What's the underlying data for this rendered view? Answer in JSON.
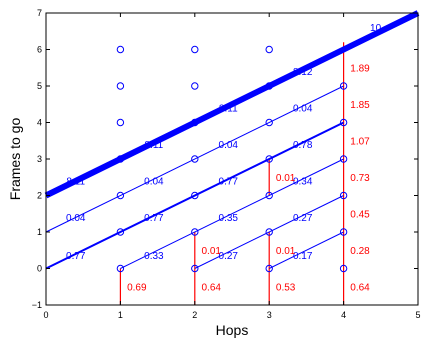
{
  "colors": {
    "blue": "#0000ff",
    "red": "#ff0000",
    "axis": "#000000"
  },
  "chart_data": {
    "type": "line",
    "title": "",
    "xlabel": "Hops",
    "ylabel": "Frames to go",
    "xlim": [
      0,
      5
    ],
    "ylim": [
      -1,
      7
    ],
    "xticks": [
      "0",
      "1",
      "2",
      "3",
      "4",
      "5"
    ],
    "yticks": [
      "−1",
      "0",
      "1",
      "2",
      "3",
      "4",
      "5",
      "6",
      "7"
    ],
    "grid": false,
    "lines": [
      {
        "x": [
          0,
          5
        ],
        "y": [
          2,
          7
        ],
        "weight": "thick"
      },
      {
        "x": [
          0,
          4
        ],
        "y": [
          0,
          4
        ],
        "weight": "medium"
      },
      {
        "x": [
          0,
          4
        ],
        "y": [
          1,
          5
        ],
        "weight": "thin"
      },
      {
        "x": [
          1,
          4
        ],
        "y": [
          0,
          3
        ],
        "weight": "thin"
      },
      {
        "x": [
          2,
          4
        ],
        "y": [
          0,
          2
        ],
        "weight": "thin"
      },
      {
        "x": [
          3,
          4
        ],
        "y": [
          0,
          1
        ],
        "weight": "thin"
      }
    ],
    "points": [
      {
        "x": 1,
        "y": 0
      },
      {
        "x": 1,
        "y": 1
      },
      {
        "x": 1,
        "y": 2
      },
      {
        "x": 1,
        "y": 3
      },
      {
        "x": 1,
        "y": 4
      },
      {
        "x": 1,
        "y": 5
      },
      {
        "x": 1,
        "y": 6
      },
      {
        "x": 2,
        "y": 0
      },
      {
        "x": 2,
        "y": 1
      },
      {
        "x": 2,
        "y": 2
      },
      {
        "x": 2,
        "y": 3
      },
      {
        "x": 2,
        "y": 4
      },
      {
        "x": 2,
        "y": 5
      },
      {
        "x": 2,
        "y": 6
      },
      {
        "x": 3,
        "y": 0
      },
      {
        "x": 3,
        "y": 1
      },
      {
        "x": 3,
        "y": 2
      },
      {
        "x": 3,
        "y": 3
      },
      {
        "x": 3,
        "y": 4
      },
      {
        "x": 3,
        "y": 5
      },
      {
        "x": 3,
        "y": 6
      },
      {
        "x": 4,
        "y": 0
      },
      {
        "x": 4,
        "y": 1
      },
      {
        "x": 4,
        "y": 2
      },
      {
        "x": 4,
        "y": 3
      },
      {
        "x": 4,
        "y": 4
      },
      {
        "x": 4,
        "y": 5
      }
    ],
    "red_stems": [
      {
        "x": 1,
        "y1": -1,
        "y2": 0
      },
      {
        "x": 2,
        "y1": -1,
        "y2": 1
      },
      {
        "x": 3,
        "y1": -1,
        "y2": 1
      },
      {
        "x": 3,
        "y1": 2,
        "y2": 3
      },
      {
        "x": 4,
        "y1": -1,
        "y2": 6.2
      }
    ],
    "blue_labels": [
      {
        "text": "0.77",
        "x": 0.4,
        "y": 0.35
      },
      {
        "text": "0.04",
        "x": 0.4,
        "y": 1.4
      },
      {
        "text": "8.11",
        "x": 0.4,
        "y": 2.4
      },
      {
        "text": "0.33",
        "x": 1.45,
        "y": 0.35
      },
      {
        "text": "0.77",
        "x": 1.45,
        "y": 1.4
      },
      {
        "text": "0.04",
        "x": 1.45,
        "y": 2.4
      },
      {
        "text": "8.11",
        "x": 1.45,
        "y": 3.4
      },
      {
        "text": "0.27",
        "x": 2.45,
        "y": 0.35
      },
      {
        "text": "0.35",
        "x": 2.45,
        "y": 1.4
      },
      {
        "text": "0.77",
        "x": 2.45,
        "y": 2.4
      },
      {
        "text": "0.04",
        "x": 2.45,
        "y": 3.4
      },
      {
        "text": "8.11",
        "x": 2.45,
        "y": 4.4
      },
      {
        "text": "0.17",
        "x": 3.45,
        "y": 0.35
      },
      {
        "text": "0.27",
        "x": 3.45,
        "y": 1.4
      },
      {
        "text": "0.34",
        "x": 3.45,
        "y": 2.4
      },
      {
        "text": "0.78",
        "x": 3.45,
        "y": 3.4
      },
      {
        "text": "0.04",
        "x": 3.45,
        "y": 4.4
      },
      {
        "text": "8.12",
        "x": 3.45,
        "y": 5.4
      },
      {
        "text": "10",
        "x": 4.43,
        "y": 6.6
      }
    ],
    "red_labels": [
      {
        "text": "0.69",
        "x": 1.09,
        "y": -0.5
      },
      {
        "text": "0.01",
        "x": 2.09,
        "y": 0.5
      },
      {
        "text": "0.64",
        "x": 2.09,
        "y": -0.5
      },
      {
        "text": "0.01",
        "x": 3.09,
        "y": 2.5
      },
      {
        "text": "0.01",
        "x": 3.09,
        "y": 0.5
      },
      {
        "text": "0.53",
        "x": 3.09,
        "y": -0.5
      },
      {
        "text": "1.89",
        "x": 4.09,
        "y": 5.5
      },
      {
        "text": "1.85",
        "x": 4.09,
        "y": 4.5
      },
      {
        "text": "1.07",
        "x": 4.09,
        "y": 3.5
      },
      {
        "text": "0.73",
        "x": 4.09,
        "y": 2.5
      },
      {
        "text": "0.45",
        "x": 4.09,
        "y": 1.5
      },
      {
        "text": "0.28",
        "x": 4.09,
        "y": 0.5
      },
      {
        "text": "0.64",
        "x": 4.09,
        "y": -0.5
      }
    ]
  }
}
